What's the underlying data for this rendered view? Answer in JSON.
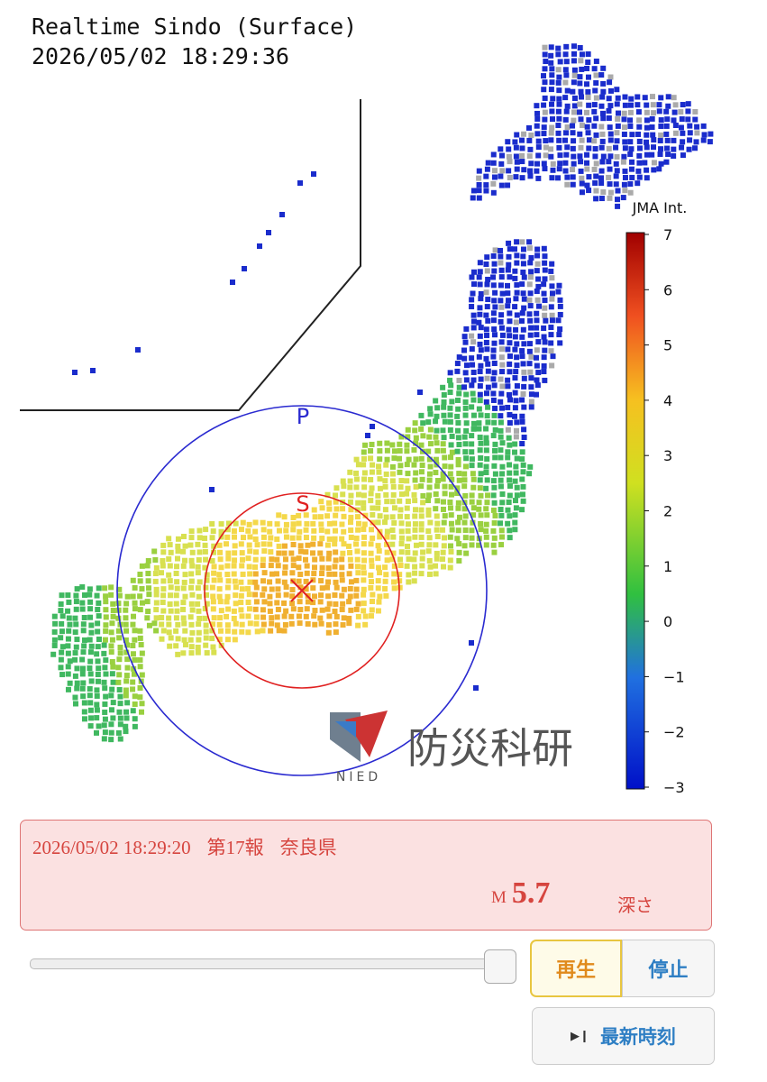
{
  "header": {
    "title": "Realtime Sindo (Surface)",
    "timestamp": "2026/05/02 18:29:36"
  },
  "map": {
    "p_wave_label": "P",
    "s_wave_label": "S",
    "logo": {
      "text": "防災科研",
      "sub": "NIED"
    }
  },
  "colorbar": {
    "title": "JMA Int.",
    "ticks": [
      "7",
      "6",
      "5",
      "4",
      "3",
      "2",
      "1",
      "0",
      "−1",
      "−2",
      "−3"
    ]
  },
  "alert": {
    "time": "2026/05/02 18:29:20",
    "report": "第17報",
    "region": "奈良県",
    "magnitude_prefix": "M",
    "magnitude": 5.7,
    "depth_label": "深さ"
  },
  "controls": {
    "play": "再生",
    "stop": "停止",
    "latest": "最新時刻"
  }
}
